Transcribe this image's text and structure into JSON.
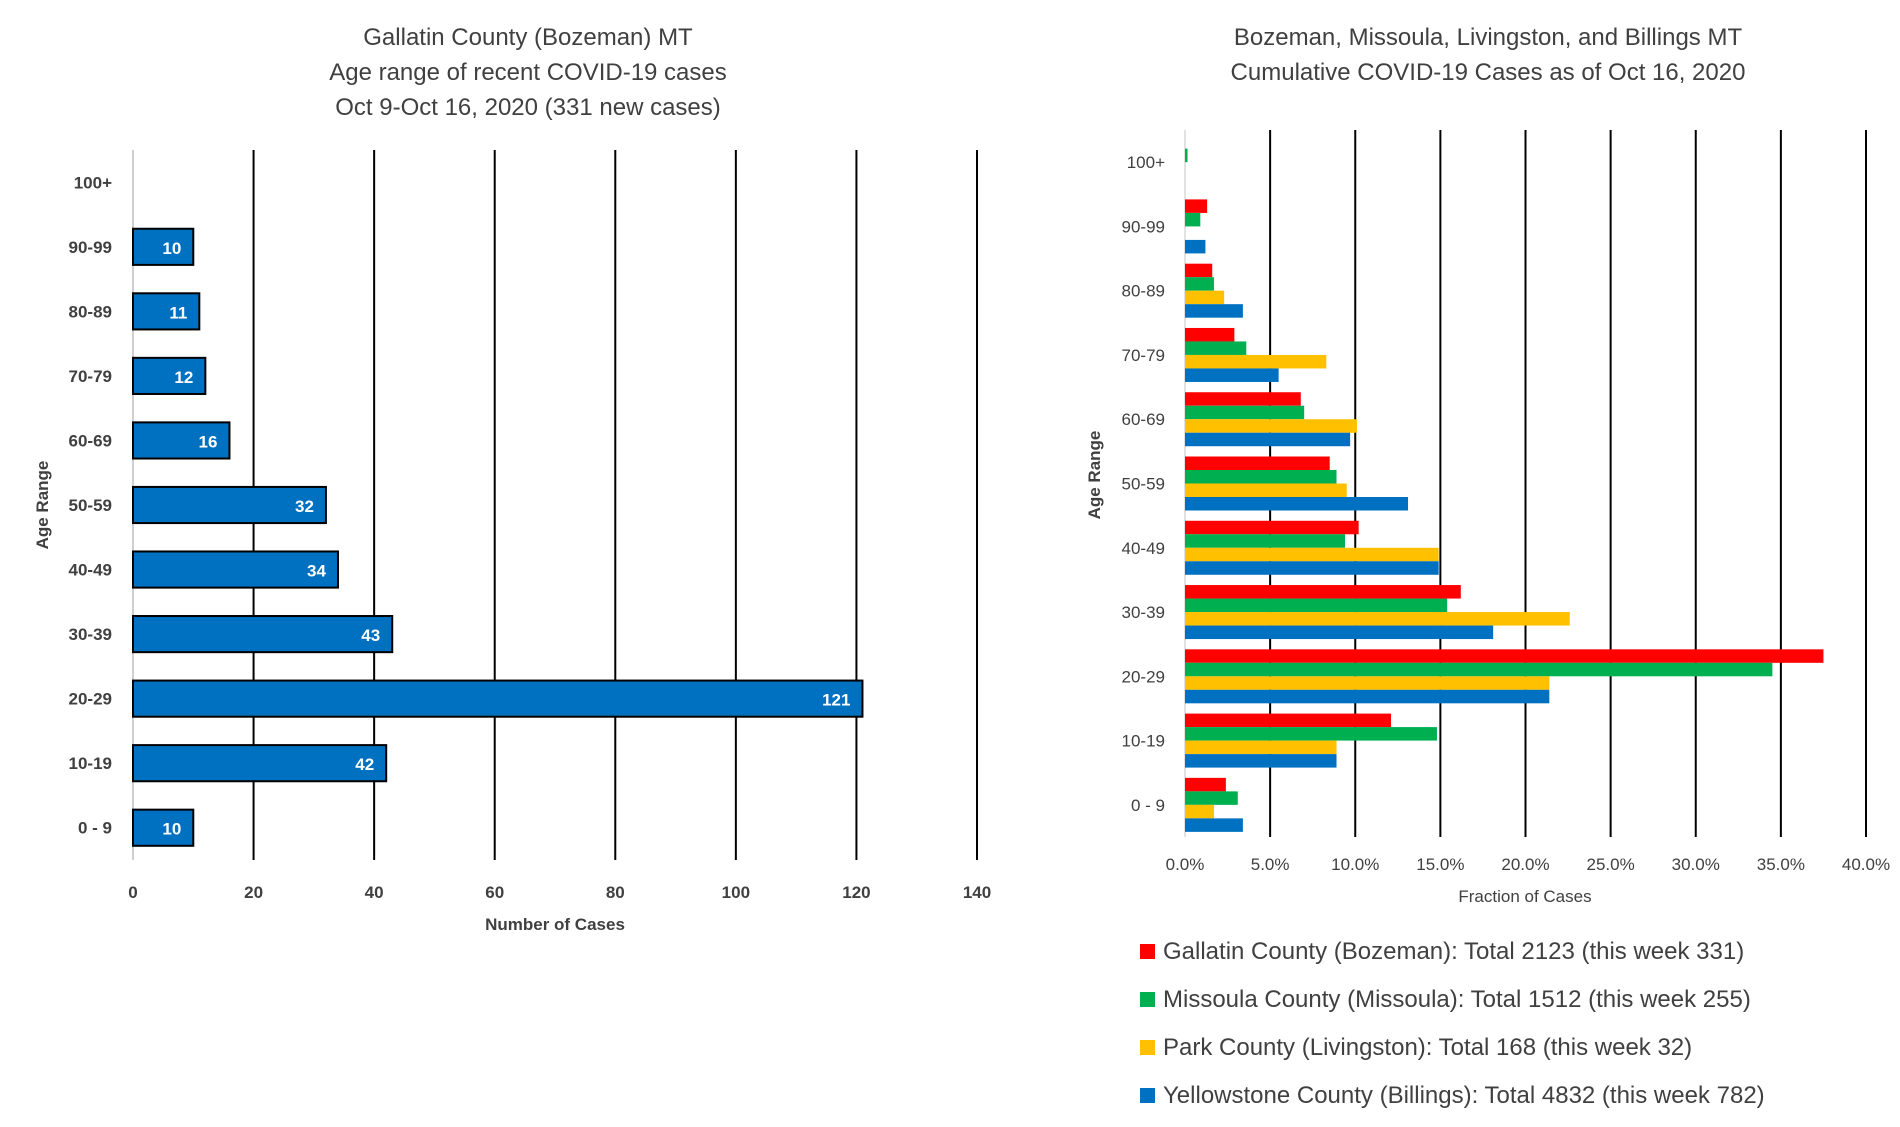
{
  "chart_data": [
    {
      "type": "bar",
      "orientation": "horizontal",
      "title": [
        "Gallatin County (Bozeman) MT",
        "Age range of recent COVID-19 cases",
        "Oct 9-Oct 16, 2020 (331 new cases)"
      ],
      "categories": [
        "0 - 9",
        "10-19",
        "20-29",
        "30-39",
        "40-49",
        "50-59",
        "60-69",
        "70-79",
        "80-89",
        "90-99",
        "100+"
      ],
      "values": [
        10,
        42,
        121,
        43,
        34,
        32,
        16,
        12,
        11,
        10,
        null
      ],
      "data_labels": [
        "10",
        "42",
        "121",
        "43",
        "34",
        "32",
        "16",
        "12",
        "11",
        "10",
        ""
      ],
      "xlabel": "Number of Cases",
      "ylabel": "Age Range",
      "xlim": [
        0,
        140
      ],
      "x_ticks": [
        0,
        20,
        40,
        60,
        80,
        100,
        120,
        140
      ],
      "x_tick_labels": [
        "0",
        "20",
        "40",
        "60",
        "80",
        "100",
        "120",
        "140"
      ],
      "grid": "vertical",
      "colors": {
        "bar": "#0070C0",
        "bar_border": "#000000",
        "grid": "#000000"
      }
    },
    {
      "type": "bar",
      "orientation": "horizontal",
      "title": [
        "Bozeman, Missoula, Livingston, and Billings MT",
        "Cumulative COVID-19 Cases as of Oct 16, 2020"
      ],
      "categories": [
        "0 - 9",
        "10-19",
        "20-29",
        "30-39",
        "40-49",
        "50-59",
        "60-69",
        "70-79",
        "80-89",
        "90-99",
        "100+"
      ],
      "series": [
        {
          "name": "Gallatin County (Bozeman): Total 2123 (this week 331)",
          "color": "#FF0000",
          "values": [
            2.4,
            12.1,
            37.5,
            16.2,
            10.2,
            8.5,
            6.8,
            2.9,
            1.6,
            1.3,
            0.0
          ]
        },
        {
          "name": "Missoula County (Missoula): Total 1512 (this week 255)",
          "color": "#00B050",
          "values": [
            3.1,
            14.8,
            34.5,
            15.4,
            9.4,
            8.9,
            7.0,
            3.6,
            1.7,
            0.9,
            0.15
          ]
        },
        {
          "name": "Park County (Livingston): Total 168 (this week 32)",
          "color": "#FFC000",
          "values": [
            1.7,
            8.9,
            21.4,
            22.6,
            14.9,
            9.5,
            10.1,
            8.3,
            2.3,
            0.0,
            0.0
          ]
        },
        {
          "name": "Yellowstone County (Billings): Total 4832 (this week 782)",
          "color": "#0070C0",
          "values": [
            3.4,
            8.9,
            21.4,
            18.1,
            14.9,
            13.1,
            9.7,
            5.5,
            3.4,
            1.2,
            0.0
          ]
        }
      ],
      "xlabel": "Fraction of Cases",
      "ylabel": "Age Range",
      "xlim": [
        0,
        40
      ],
      "x_ticks": [
        0,
        5,
        10,
        15,
        20,
        25,
        30,
        35,
        40
      ],
      "x_tick_labels": [
        "0.0%",
        "5.0%",
        "10.0%",
        "15.0%",
        "20.0%",
        "25.0%",
        "30.0%",
        "35.0%",
        "40.0%"
      ],
      "grid": "vertical",
      "legend": "bottom"
    }
  ]
}
